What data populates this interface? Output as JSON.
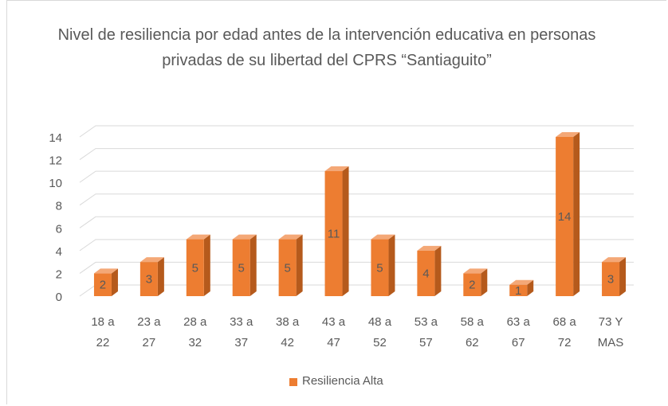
{
  "chart_data": {
    "type": "bar3d",
    "title": "Nivel de resiliencia por edad antes de la intervención educativa en personas privadas de su libertad del CPRS “Santiaguito”",
    "categories": [
      "18 a 22",
      "23 a 27",
      "28 a 32",
      "33 a 37",
      "38 a 42",
      "43 a 47",
      "48 a 52",
      "53 a 57",
      "58 a 62",
      "63 a 67",
      "68 a 72",
      "73 Y MAS"
    ],
    "series": [
      {
        "name": "Resiliencia Alta",
        "color": "#ed7d31",
        "values": [
          2,
          3,
          5,
          5,
          5,
          11,
          5,
          4,
          2,
          1,
          14,
          3
        ]
      }
    ],
    "ylim": [
      0,
      14
    ],
    "yticks": [
      0,
      2,
      4,
      6,
      8,
      10,
      12,
      14
    ],
    "grid": true,
    "legend": "bottom"
  }
}
